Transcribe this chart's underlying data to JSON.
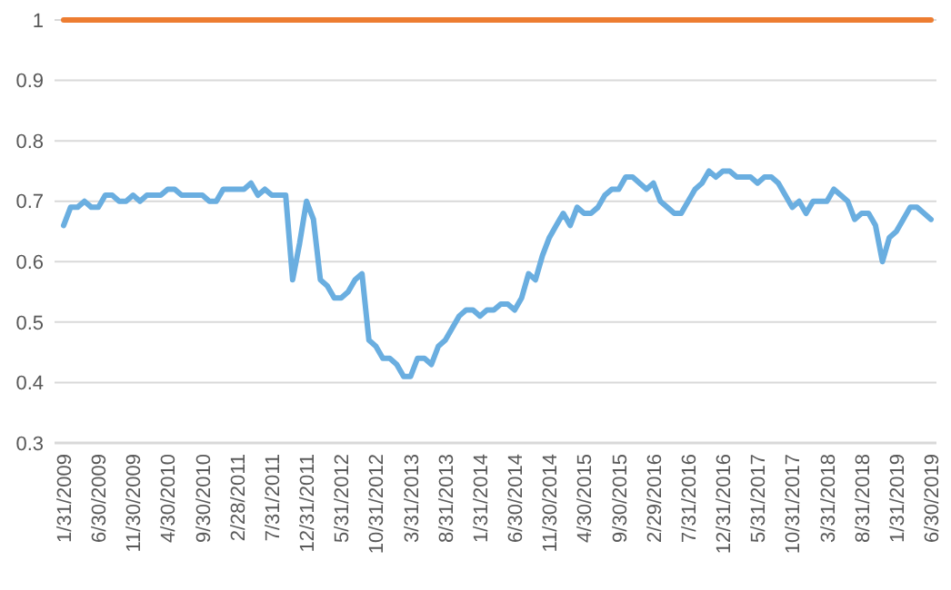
{
  "chart_data": {
    "type": "line",
    "categories": [
      "1/31/2009",
      null,
      null,
      null,
      null,
      "6/30/2009",
      null,
      null,
      null,
      null,
      "11/30/2009",
      null,
      null,
      null,
      null,
      "4/30/2010",
      null,
      null,
      null,
      null,
      "9/30/2010",
      null,
      null,
      null,
      null,
      "2/28/2011",
      null,
      null,
      null,
      null,
      "7/31/2011",
      null,
      null,
      null,
      null,
      "12/31/2011",
      null,
      null,
      null,
      null,
      "5/31/2012",
      null,
      null,
      null,
      null,
      "10/31/2012",
      null,
      null,
      null,
      null,
      "3/31/2013",
      null,
      null,
      null,
      null,
      "8/31/2013",
      null,
      null,
      null,
      null,
      "1/31/2014",
      null,
      null,
      null,
      null,
      "6/30/2014",
      null,
      null,
      null,
      null,
      "11/30/2014",
      null,
      null,
      null,
      null,
      "4/30/2015",
      null,
      null,
      null,
      null,
      "9/30/2015",
      null,
      null,
      null,
      null,
      "2/29/2016",
      null,
      null,
      null,
      null,
      "7/31/2016",
      null,
      null,
      null,
      null,
      "12/31/2016",
      null,
      null,
      null,
      null,
      "5/31/2017",
      null,
      null,
      null,
      null,
      "10/31/2017",
      null,
      null,
      null,
      null,
      "3/31/2018",
      null,
      null,
      null,
      null,
      "8/31/2018",
      null,
      null,
      null,
      null,
      "1/31/2019",
      null,
      null,
      null,
      null,
      "6/30/2019"
    ],
    "series": [
      {
        "color": "#6aaee0",
        "values": [
          0.66,
          0.69,
          0.69,
          0.7,
          0.69,
          0.69,
          0.71,
          0.71,
          0.7,
          0.7,
          0.71,
          0.7,
          0.71,
          0.71,
          0.71,
          0.72,
          0.72,
          0.71,
          0.71,
          0.71,
          0.71,
          0.7,
          0.7,
          0.72,
          0.72,
          0.72,
          0.72,
          0.73,
          0.71,
          0.72,
          0.71,
          0.71,
          0.71,
          0.57,
          0.63,
          0.7,
          0.67,
          0.57,
          0.56,
          0.54,
          0.54,
          0.55,
          0.57,
          0.58,
          0.47,
          0.46,
          0.44,
          0.44,
          0.43,
          0.41,
          0.41,
          0.44,
          0.44,
          0.43,
          0.46,
          0.47,
          0.49,
          0.51,
          0.52,
          0.52,
          0.51,
          0.52,
          0.52,
          0.53,
          0.53,
          0.52,
          0.54,
          0.58,
          0.57,
          0.61,
          0.64,
          0.66,
          0.68,
          0.66,
          0.69,
          0.68,
          0.68,
          0.69,
          0.71,
          0.72,
          0.72,
          0.74,
          0.74,
          0.73,
          0.72,
          0.73,
          0.7,
          0.69,
          0.68,
          0.68,
          0.7,
          0.72,
          0.73,
          0.75,
          0.74,
          0.75,
          0.75,
          0.74,
          0.74,
          0.74,
          0.73,
          0.74,
          0.74,
          0.73,
          0.71,
          0.69,
          0.7,
          0.68,
          0.7,
          0.7,
          0.7,
          0.72,
          0.71,
          0.7,
          0.67,
          0.68,
          0.68,
          0.66,
          0.6,
          0.64,
          0.65,
          0.67,
          0.69,
          0.69,
          0.68,
          0.67
        ]
      },
      {
        "color": "#ed7d31",
        "values": [
          1,
          1,
          1,
          1,
          1,
          1,
          1,
          1,
          1,
          1,
          1,
          1,
          1,
          1,
          1,
          1,
          1,
          1,
          1,
          1,
          1,
          1,
          1,
          1,
          1,
          1,
          1,
          1,
          1,
          1,
          1,
          1,
          1,
          1,
          1,
          1,
          1,
          1,
          1,
          1,
          1,
          1,
          1,
          1,
          1,
          1,
          1,
          1,
          1,
          1,
          1,
          1,
          1,
          1,
          1,
          1,
          1,
          1,
          1,
          1,
          1,
          1,
          1,
          1,
          1,
          1,
          1,
          1,
          1,
          1,
          1,
          1,
          1,
          1,
          1,
          1,
          1,
          1,
          1,
          1,
          1,
          1,
          1,
          1,
          1,
          1,
          1,
          1,
          1,
          1,
          1,
          1,
          1,
          1,
          1,
          1,
          1,
          1,
          1,
          1,
          1,
          1,
          1,
          1,
          1,
          1,
          1,
          1,
          1,
          1,
          1,
          1,
          1,
          1,
          1,
          1,
          1,
          1,
          1,
          1,
          1,
          1,
          1,
          1,
          1,
          1
        ]
      }
    ],
    "ylim": [
      0.3,
      1.0
    ],
    "yticks": [
      0.3,
      0.4,
      0.5,
      0.6,
      0.7,
      0.8,
      0.9,
      1
    ],
    "grid": "y"
  }
}
